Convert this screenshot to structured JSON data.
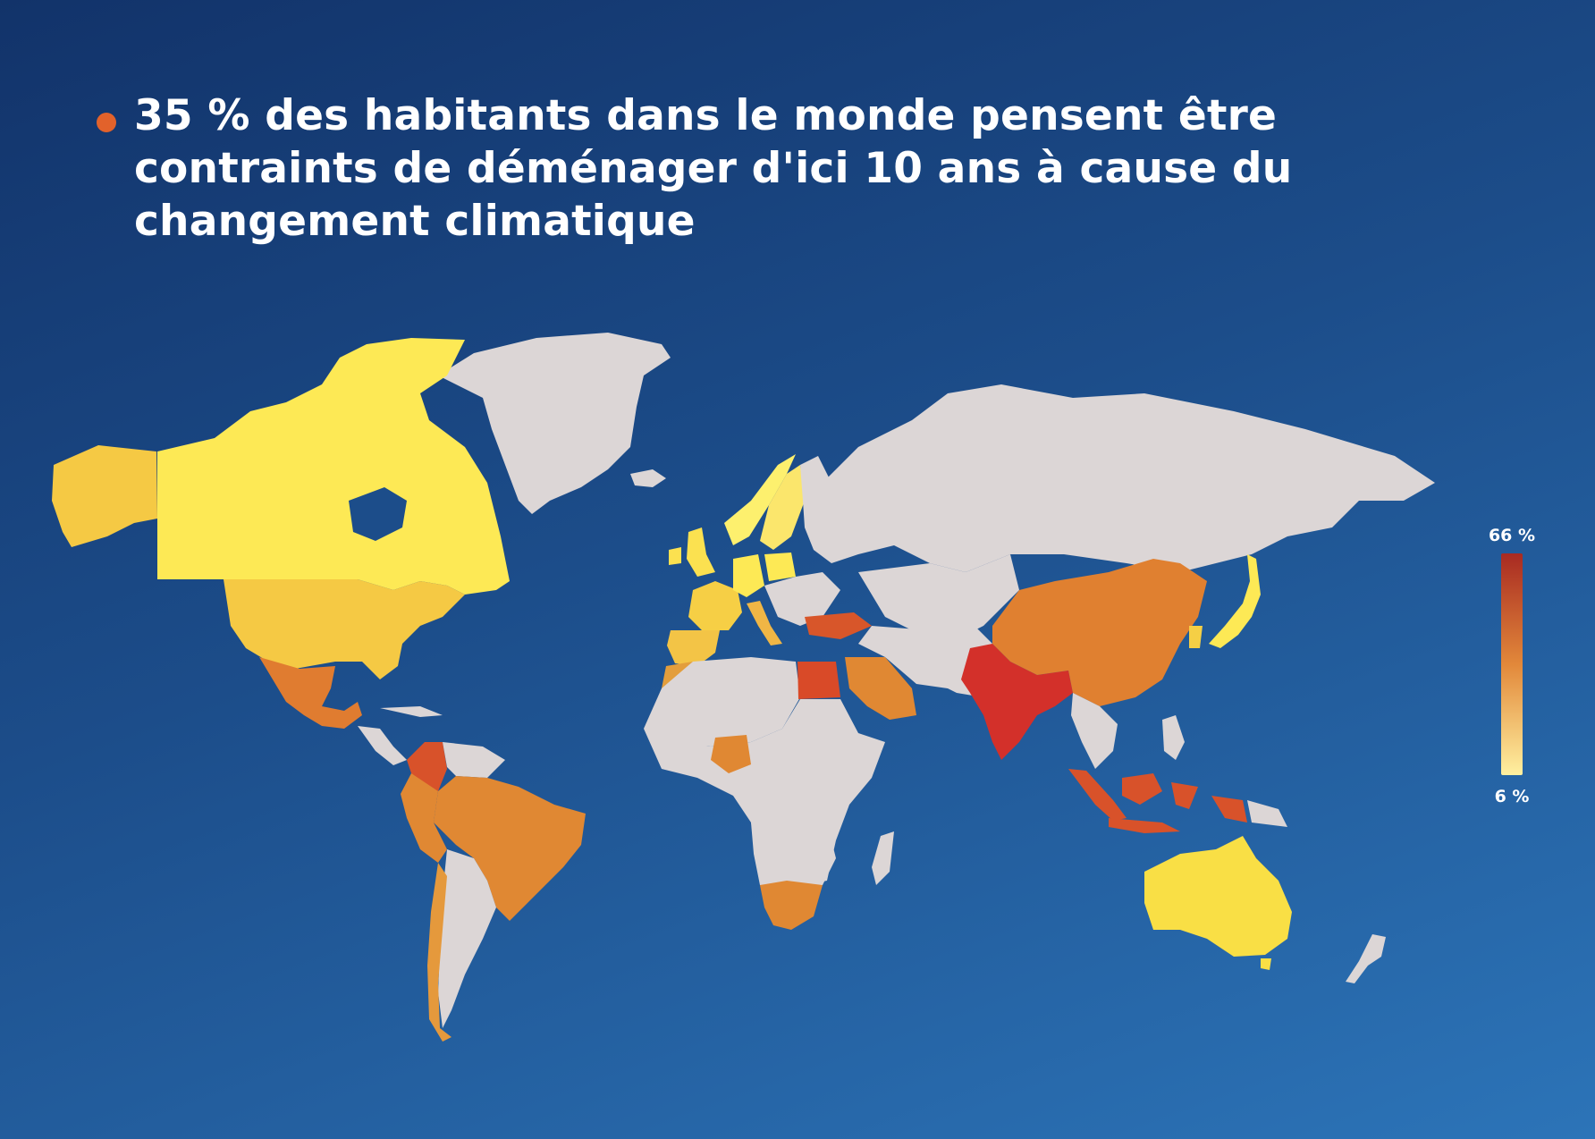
{
  "headline": {
    "text": "35 % des habitants dans le monde pensent être contraints de déménager d'ici 10 ans à cause du changement climatique",
    "bullet_color": "#e2622b"
  },
  "legend": {
    "max_label": "66 %",
    "min_label": "6 %",
    "max_color": "#a82a22",
    "mid_color": "#e2883a",
    "min_color": "#fff0a0"
  },
  "map": {
    "type": "choropleth",
    "no_data_color": "#dcd6d6",
    "scale": "sequential, yellow (low) to dark red (high)",
    "highlighted_countries": [
      {
        "name": "Canada",
        "color": "#fde955"
      },
      {
        "name": "États-Unis",
        "color": "#f5c944"
      },
      {
        "name": "Mexique",
        "color": "#e07c30"
      },
      {
        "name": "Colombie",
        "color": "#d8522a"
      },
      {
        "name": "Brésil",
        "color": "#e08833"
      },
      {
        "name": "Pérou",
        "color": "#e08833"
      },
      {
        "name": "Chili",
        "color": "#e5993c"
      },
      {
        "name": "Argentine",
        "color": "#dcd6d6"
      },
      {
        "name": "Royaume-Uni",
        "color": "#fbe150"
      },
      {
        "name": "Irlande",
        "color": "#fbe150"
      },
      {
        "name": "France",
        "color": "#f6cf45"
      },
      {
        "name": "Espagne",
        "color": "#f3c446"
      },
      {
        "name": "Portugal",
        "color": "#f3c446"
      },
      {
        "name": "Allemagne",
        "color": "#fde955"
      },
      {
        "name": "Italie",
        "color": "#f0b645"
      },
      {
        "name": "Pologne",
        "color": "#fde955"
      },
      {
        "name": "Suède",
        "color": "#fbe66c"
      },
      {
        "name": "Norvège",
        "color": "#fdf06e"
      },
      {
        "name": "Turquie",
        "color": "#d8562a"
      },
      {
        "name": "Égypte",
        "color": "#d94a28"
      },
      {
        "name": "Maroc",
        "color": "#e39e3c"
      },
      {
        "name": "Nigeria",
        "color": "#e08833"
      },
      {
        "name": "Afrique du Sud",
        "color": "#e08833"
      },
      {
        "name": "Arabie saoudite",
        "color": "#e08833"
      },
      {
        "name": "Inde",
        "color": "#d3302a"
      },
      {
        "name": "Chine",
        "color": "#e08030"
      },
      {
        "name": "Indonésie",
        "color": "#d8522a"
      },
      {
        "name": "Japon",
        "color": "#fde955"
      },
      {
        "name": "Corée du Sud",
        "color": "#f5cf45"
      },
      {
        "name": "Australie",
        "color": "#f9df45"
      }
    ]
  }
}
